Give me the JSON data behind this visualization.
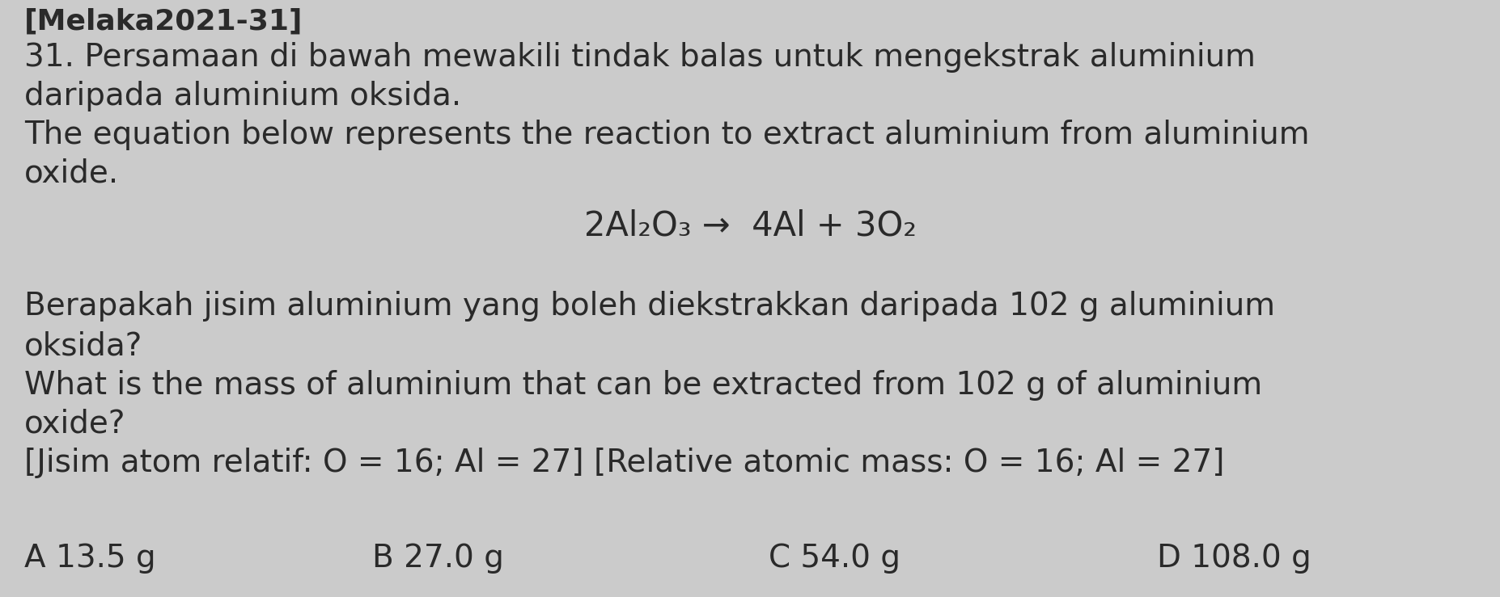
{
  "background_color": "#cbcbcb",
  "text_color": "#2a2a2a",
  "header": "[Melaka2021-31]",
  "line1": "31. Persamaan di bawah mewakili tindak balas untuk mengekstrak aluminium",
  "line2": "daripada aluminium oksida.",
  "line3": "The equation below represents the reaction to extract aluminium from aluminium",
  "line4": "oxide.",
  "equation": "2Al₂O₃ →  4Al + 3O₂",
  "line5": "Berapakah jisim aluminium yang boleh diekstrakkan daripada 102 g aluminium",
  "line6": "oksida?",
  "line7": "What is the mass of aluminium that can be extracted from 102 g of aluminium",
  "line8": "oxide?",
  "line9": "[Jisim atom relatif: O = 16; Al = 27] [Relative atomic mass: O = 16; Al = 27]",
  "optionA": "A 13.5 g",
  "optionB": "B 27.0 g",
  "optionC": "C 54.0 g",
  "optionD": "D 108.0 g",
  "body_fontsize": 28,
  "header_fontsize": 26,
  "equation_fontsize": 30,
  "options_fontsize": 28,
  "fig_width": 18.54,
  "fig_height": 7.39,
  "dpi": 100
}
